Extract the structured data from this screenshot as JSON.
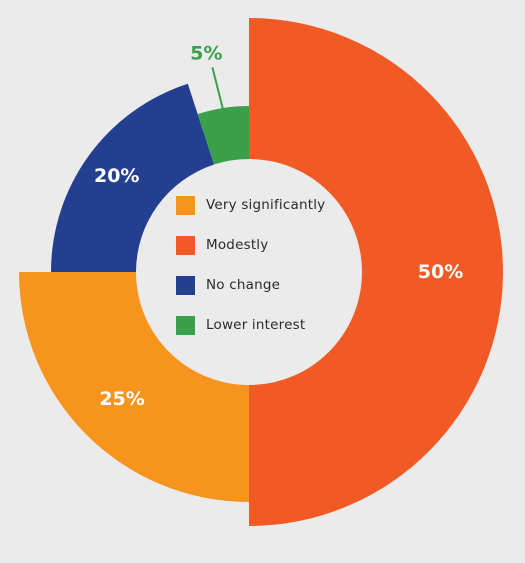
{
  "chart_data": {
    "type": "pie",
    "style": "donut",
    "categories": [
      "Modestly",
      "Very significantly",
      "No change",
      "Lower interest"
    ],
    "values": [
      50,
      25,
      20,
      5
    ],
    "labels": [
      "50%",
      "25%",
      "20%",
      "5%"
    ],
    "colors": [
      "#f15a24",
      "#f7941d",
      "#243f8f",
      "#3aa14a"
    ],
    "legend": {
      "position": "center",
      "items": [
        {
          "label": "Very significantly",
          "color": "#f7941d"
        },
        {
          "label": "Modestly",
          "color": "#f15a24"
        },
        {
          "label": "No change",
          "color": "#243f8f"
        },
        {
          "label": "Lower interest",
          "color": "#3aa14a"
        }
      ]
    }
  }
}
